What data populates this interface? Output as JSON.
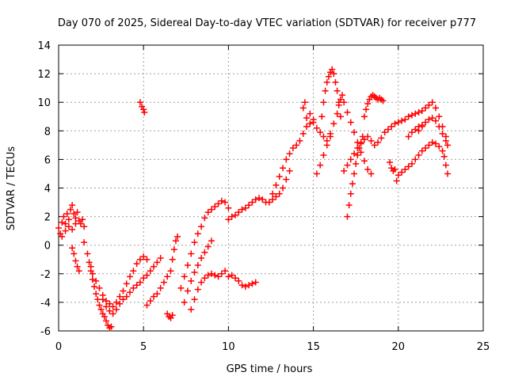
{
  "chart_data": {
    "type": "scatter",
    "title": "Day 070 of 2025, Sidereal Day-to-day VTEC variation (SDTVAR) for receiver p777",
    "xlabel": "GPS time / hours",
    "ylabel": "SDTVAR / TECUs",
    "xlim": [
      0,
      25
    ],
    "ylim": [
      -6,
      14
    ],
    "xticks": [
      0,
      5,
      10,
      15,
      20,
      25
    ],
    "yticks": [
      -6,
      -4,
      -2,
      0,
      2,
      4,
      6,
      8,
      10,
      12,
      14
    ],
    "grid": true,
    "legend": "none",
    "marker": "plus",
    "color": "#ff0000",
    "series": [
      {
        "points": [
          [
            0.0,
            1.2
          ],
          [
            0.1,
            0.8
          ],
          [
            0.2,
            1.6
          ],
          [
            0.3,
            2.0
          ],
          [
            0.4,
            1.5
          ],
          [
            0.5,
            2.2
          ],
          [
            0.6,
            1.8
          ],
          [
            0.7,
            2.5
          ],
          [
            0.8,
            2.8
          ],
          [
            0.9,
            2.2
          ],
          [
            1.0,
            1.9
          ],
          [
            1.1,
            2.3
          ],
          [
            1.2,
            1.7
          ],
          [
            1.3,
            1.5
          ],
          [
            1.4,
            1.8
          ],
          [
            1.5,
            1.3
          ],
          [
            0.2,
            0.6
          ],
          [
            0.4,
            1.0
          ],
          [
            0.6,
            1.3
          ],
          [
            0.8,
            1.1
          ],
          [
            1.0,
            1.5
          ]
        ]
      },
      {
        "points": [
          [
            0.8,
            -0.2
          ],
          [
            0.9,
            -0.6
          ],
          [
            1.0,
            -1.1
          ],
          [
            1.1,
            -1.5
          ],
          [
            1.2,
            -1.8
          ]
        ]
      },
      {
        "points": [
          [
            1.5,
            0.2
          ],
          [
            1.7,
            -0.6
          ],
          [
            1.8,
            -1.2
          ],
          [
            1.9,
            -1.8
          ],
          [
            2.0,
            -2.4
          ],
          [
            2.1,
            -2.9
          ],
          [
            2.2,
            -3.4
          ],
          [
            2.3,
            -3.8
          ],
          [
            2.4,
            -4.2
          ],
          [
            2.5,
            -4.5
          ],
          [
            2.6,
            -4.8
          ],
          [
            2.7,
            -5.0
          ],
          [
            2.8,
            -5.3
          ],
          [
            2.9,
            -5.6
          ],
          [
            3.0,
            -5.8
          ],
          [
            3.1,
            -5.7
          ]
        ]
      },
      {
        "points": [
          [
            1.9,
            -1.5
          ],
          [
            2.0,
            -2.0
          ],
          [
            2.2,
            -2.5
          ],
          [
            2.4,
            -3.0
          ],
          [
            2.6,
            -3.5
          ],
          [
            2.8,
            -3.9
          ],
          [
            3.0,
            -4.1
          ],
          [
            3.2,
            -4.3
          ],
          [
            3.4,
            -4.0
          ],
          [
            3.6,
            -3.6
          ],
          [
            3.8,
            -3.2
          ],
          [
            4.0,
            -2.7
          ],
          [
            4.2,
            -2.2
          ],
          [
            4.4,
            -1.8
          ],
          [
            4.6,
            -1.3
          ],
          [
            4.8,
            -1.0
          ],
          [
            5.0,
            -0.8
          ],
          [
            5.2,
            -1.0
          ]
        ]
      },
      {
        "points": [
          [
            2.6,
            -3.8
          ],
          [
            2.8,
            -4.3
          ],
          [
            3.0,
            -4.6
          ],
          [
            3.2,
            -4.8
          ],
          [
            3.4,
            -4.5
          ],
          [
            3.6,
            -4.1
          ],
          [
            3.8,
            -3.8
          ],
          [
            4.0,
            -3.6
          ],
          [
            4.2,
            -3.3
          ],
          [
            4.4,
            -3.0
          ],
          [
            4.6,
            -2.8
          ],
          [
            4.8,
            -2.6
          ],
          [
            5.0,
            -2.3
          ],
          [
            5.2,
            -2.1
          ],
          [
            5.4,
            -1.8
          ],
          [
            5.6,
            -1.5
          ],
          [
            5.8,
            -1.2
          ],
          [
            6.0,
            -0.9
          ]
        ]
      },
      {
        "points": [
          [
            4.8,
            10.0
          ],
          [
            4.9,
            9.7
          ],
          [
            5.0,
            9.5
          ],
          [
            5.05,
            9.3
          ]
        ]
      },
      {
        "points": [
          [
            5.2,
            -4.2
          ],
          [
            5.4,
            -3.9
          ],
          [
            5.6,
            -3.6
          ],
          [
            5.8,
            -3.4
          ],
          [
            6.0,
            -3.0
          ],
          [
            6.2,
            -2.6
          ],
          [
            6.4,
            -2.2
          ],
          [
            6.6,
            -1.8
          ],
          [
            6.7,
            -1.0
          ],
          [
            6.8,
            -0.3
          ],
          [
            6.9,
            0.3
          ],
          [
            7.0,
            0.6
          ]
        ]
      },
      {
        "points": [
          [
            6.4,
            -4.8
          ],
          [
            6.5,
            -5.0
          ],
          [
            6.6,
            -5.1
          ],
          [
            6.7,
            -4.9
          ]
        ]
      },
      {
        "points": [
          [
            7.2,
            -3.0
          ],
          [
            7.4,
            -2.2
          ],
          [
            7.6,
            -1.4
          ],
          [
            7.8,
            -0.6
          ],
          [
            8.0,
            0.2
          ],
          [
            8.2,
            0.8
          ],
          [
            8.4,
            1.3
          ],
          [
            8.6,
            1.9
          ],
          [
            8.8,
            2.3
          ],
          [
            9.0,
            2.5
          ],
          [
            9.2,
            2.7
          ],
          [
            9.4,
            2.9
          ],
          [
            9.6,
            3.1
          ],
          [
            9.8,
            3.0
          ],
          [
            10.0,
            2.6
          ]
        ]
      },
      {
        "points": [
          [
            7.4,
            -4.0
          ],
          [
            7.6,
            -3.2
          ],
          [
            7.8,
            -2.5
          ],
          [
            8.0,
            -1.9
          ],
          [
            8.2,
            -1.4
          ],
          [
            8.4,
            -0.9
          ],
          [
            8.6,
            -0.5
          ],
          [
            8.8,
            -0.1
          ],
          [
            9.0,
            0.3
          ]
        ]
      },
      {
        "points": [
          [
            7.8,
            -4.5
          ],
          [
            8.0,
            -3.8
          ],
          [
            8.2,
            -3.1
          ],
          [
            8.4,
            -2.6
          ],
          [
            8.6,
            -2.3
          ],
          [
            8.8,
            -2.1
          ],
          [
            9.0,
            -2.0
          ],
          [
            9.2,
            -2.1
          ],
          [
            9.4,
            -2.2
          ],
          [
            9.6,
            -2.0
          ],
          [
            9.8,
            -1.8
          ],
          [
            10.0,
            -2.2
          ],
          [
            10.2,
            -2.1
          ],
          [
            10.4,
            -2.3
          ],
          [
            10.6,
            -2.5
          ],
          [
            10.8,
            -2.8
          ],
          [
            11.0,
            -2.9
          ],
          [
            11.2,
            -2.8
          ],
          [
            11.4,
            -2.7
          ],
          [
            11.6,
            -2.6
          ]
        ]
      },
      {
        "points": [
          [
            10.0,
            1.8
          ],
          [
            10.2,
            2.0
          ],
          [
            10.4,
            2.1
          ],
          [
            10.6,
            2.3
          ],
          [
            10.8,
            2.5
          ],
          [
            11.0,
            2.6
          ],
          [
            11.2,
            2.8
          ],
          [
            11.4,
            3.0
          ],
          [
            11.6,
            3.2
          ],
          [
            11.8,
            3.3
          ],
          [
            12.0,
            3.2
          ],
          [
            12.2,
            3.0
          ],
          [
            12.4,
            3.0
          ],
          [
            12.6,
            3.2
          ],
          [
            12.8,
            3.4
          ],
          [
            13.0,
            3.6
          ],
          [
            13.2,
            4.0
          ],
          [
            13.4,
            4.6
          ],
          [
            13.6,
            5.2
          ]
        ]
      },
      {
        "points": [
          [
            12.6,
            3.6
          ],
          [
            12.8,
            4.2
          ],
          [
            13.0,
            4.8
          ],
          [
            13.2,
            5.4
          ],
          [
            13.4,
            6.0
          ],
          [
            13.6,
            6.4
          ],
          [
            13.8,
            6.8
          ],
          [
            14.0,
            7.0
          ],
          [
            14.2,
            7.3
          ],
          [
            14.4,
            7.8
          ],
          [
            14.6,
            8.3
          ],
          [
            14.8,
            8.5
          ],
          [
            15.0,
            8.8
          ]
        ]
      },
      {
        "points": [
          [
            14.4,
            9.6
          ],
          [
            14.5,
            10.0
          ],
          [
            14.6,
            8.9
          ],
          [
            14.8,
            9.2
          ],
          [
            15.0,
            8.6
          ],
          [
            15.2,
            8.2
          ],
          [
            15.4,
            7.9
          ],
          [
            15.6,
            7.6
          ],
          [
            15.8,
            7.3
          ],
          [
            16.0,
            7.6
          ]
        ]
      },
      {
        "points": [
          [
            15.2,
            5.0
          ],
          [
            15.4,
            5.6
          ],
          [
            15.6,
            6.3
          ],
          [
            15.8,
            7.0
          ],
          [
            16.0,
            7.8
          ],
          [
            16.2,
            8.5
          ],
          [
            16.4,
            9.2
          ],
          [
            16.5,
            9.8
          ],
          [
            16.6,
            10.2
          ],
          [
            16.7,
            10.5
          ],
          [
            16.8,
            10.0
          ],
          [
            17.0,
            9.3
          ],
          [
            17.2,
            8.6
          ],
          [
            17.4,
            7.9
          ],
          [
            17.6,
            7.2
          ],
          [
            17.8,
            6.5
          ],
          [
            18.0,
            5.9
          ],
          [
            18.2,
            5.3
          ],
          [
            18.4,
            5.0
          ]
        ]
      },
      {
        "points": [
          [
            15.5,
            9.0
          ],
          [
            15.6,
            10.0
          ],
          [
            15.7,
            10.8
          ],
          [
            15.8,
            11.4
          ],
          [
            15.9,
            11.8
          ],
          [
            16.0,
            12.1
          ],
          [
            16.1,
            12.3
          ],
          [
            16.2,
            12.0
          ],
          [
            16.3,
            11.4
          ],
          [
            16.4,
            10.8
          ],
          [
            16.5,
            10.0
          ],
          [
            16.6,
            9.0
          ]
        ]
      },
      {
        "points": [
          [
            17.0,
            2.0
          ],
          [
            17.1,
            2.8
          ],
          [
            17.2,
            3.6
          ],
          [
            17.3,
            4.3
          ],
          [
            17.4,
            5.0
          ],
          [
            17.5,
            5.7
          ],
          [
            17.6,
            6.3
          ],
          [
            17.7,
            6.8
          ],
          [
            17.8,
            7.2
          ],
          [
            17.9,
            7.6
          ]
        ]
      },
      {
        "points": [
          [
            16.8,
            5.2
          ],
          [
            17.0,
            5.6
          ],
          [
            17.2,
            6.0
          ],
          [
            17.4,
            6.4
          ],
          [
            17.6,
            6.8
          ],
          [
            17.8,
            7.1
          ],
          [
            18.0,
            7.4
          ],
          [
            18.2,
            7.6
          ],
          [
            18.4,
            7.3
          ],
          [
            18.6,
            7.0
          ],
          [
            18.8,
            7.2
          ],
          [
            19.0,
            7.5
          ],
          [
            19.2,
            7.9
          ],
          [
            19.4,
            8.1
          ],
          [
            19.6,
            8.3
          ],
          [
            19.8,
            8.5
          ],
          [
            20.0,
            8.6
          ],
          [
            20.2,
            8.7
          ],
          [
            20.4,
            8.8
          ],
          [
            20.6,
            9.0
          ],
          [
            20.8,
            9.1
          ],
          [
            21.0,
            9.2
          ],
          [
            21.2,
            9.3
          ],
          [
            21.4,
            9.4
          ],
          [
            21.6,
            9.6
          ],
          [
            21.8,
            9.8
          ],
          [
            22.0,
            10.0
          ],
          [
            22.2,
            9.6
          ],
          [
            22.4,
            9.0
          ],
          [
            22.6,
            8.3
          ],
          [
            22.8,
            7.6
          ],
          [
            22.9,
            7.0
          ]
        ]
      },
      {
        "points": [
          [
            18.0,
            9.0
          ],
          [
            18.1,
            9.5
          ],
          [
            18.2,
            9.9
          ],
          [
            18.3,
            10.2
          ],
          [
            18.4,
            10.4
          ],
          [
            18.5,
            10.5
          ],
          [
            18.6,
            10.4
          ],
          [
            18.7,
            10.3
          ],
          [
            18.8,
            10.2
          ],
          [
            18.9,
            10.3
          ],
          [
            19.0,
            10.2
          ],
          [
            19.1,
            10.1
          ]
        ]
      },
      {
        "points": [
          [
            19.5,
            5.8
          ],
          [
            19.6,
            5.4
          ],
          [
            19.7,
            5.2
          ],
          [
            19.8,
            5.3
          ]
        ]
      },
      {
        "points": [
          [
            19.9,
            4.5
          ],
          [
            20.0,
            4.9
          ],
          [
            20.2,
            5.1
          ],
          [
            20.4,
            5.3
          ],
          [
            20.6,
            5.5
          ],
          [
            20.8,
            5.7
          ]
        ]
      },
      {
        "points": [
          [
            20.6,
            7.6
          ],
          [
            20.8,
            7.9
          ],
          [
            21.0,
            8.1
          ],
          [
            21.2,
            8.3
          ],
          [
            21.4,
            8.4
          ]
        ]
      },
      {
        "points": [
          [
            21.0,
            6.0
          ],
          [
            21.2,
            6.3
          ],
          [
            21.4,
            6.6
          ],
          [
            21.6,
            6.8
          ],
          [
            21.8,
            7.0
          ],
          [
            22.0,
            7.2
          ],
          [
            22.2,
            7.1
          ],
          [
            22.4,
            6.9
          ],
          [
            22.6,
            6.6
          ],
          [
            22.7,
            6.2
          ],
          [
            22.8,
            5.6
          ],
          [
            22.9,
            5.0
          ]
        ]
      },
      {
        "points": [
          [
            21.2,
            8.0
          ],
          [
            21.4,
            8.3
          ],
          [
            21.6,
            8.6
          ],
          [
            21.8,
            8.8
          ],
          [
            22.0,
            8.9
          ],
          [
            22.2,
            8.7
          ],
          [
            22.4,
            8.3
          ],
          [
            22.6,
            7.8
          ],
          [
            22.8,
            7.3
          ]
        ]
      }
    ]
  }
}
